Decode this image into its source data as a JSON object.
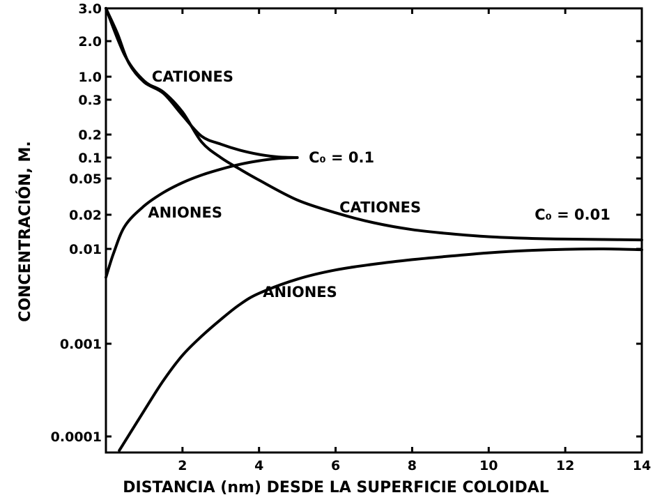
{
  "chart_data": {
    "type": "line",
    "xlabel": "DISTANCIA (nm) DESDE LA SUPERFICIE COLOIDAL",
    "ylabel": "CONCENTRACIÓN, M.",
    "xlim": [
      0,
      14
    ],
    "x_ticks": [
      2,
      4,
      6,
      8,
      10,
      12,
      14
    ],
    "y_ticks": [
      {
        "value": 3.0,
        "label": "3.0"
      },
      {
        "value": 2.0,
        "label": "2.0"
      },
      {
        "value": 1.0,
        "label": "1.0"
      },
      {
        "value": 0.3,
        "label": "0.3"
      },
      {
        "value": 0.2,
        "label": "0.2"
      },
      {
        "value": 0.1,
        "label": "0.1"
      },
      {
        "value": 0.05,
        "label": "0.05"
      },
      {
        "value": 0.02,
        "label": "0.02"
      },
      {
        "value": 0.01,
        "label": "0.01"
      },
      {
        "value": 0.001,
        "label": "0.001"
      },
      {
        "value": 0.0001,
        "label": "0.0001"
      }
    ],
    "grid": false,
    "series": [
      {
        "name": "CATIONES",
        "x": [
          0.0,
          0.3,
          0.6,
          1.0,
          1.5,
          2.0,
          2.5,
          3.0,
          3.5,
          4.0,
          4.5,
          5.0
        ],
        "y": [
          3.0,
          2.2,
          1.3,
          0.75,
          0.42,
          0.25,
          0.19,
          0.15,
          0.125,
          0.11,
          0.102,
          0.1
        ]
      },
      {
        "name": "ANIONES",
        "x": [
          0.0,
          0.2,
          0.5,
          1.0,
          1.5,
          2.0,
          2.5,
          3.0,
          3.5,
          4.0,
          4.5,
          5.0
        ],
        "y": [
          0.005,
          0.009,
          0.016,
          0.025,
          0.035,
          0.045,
          0.056,
          0.068,
          0.08,
          0.09,
          0.097,
          0.1
        ]
      },
      {
        "name": "CATIONES",
        "x": [
          0.0,
          0.5,
          1.0,
          1.5,
          2.0,
          2.5,
          3.0,
          3.5,
          4.0,
          5.0,
          6.0,
          7.0,
          8.0,
          9.0,
          10.0,
          11.0,
          12.0,
          13.0,
          14.0
        ],
        "y": [
          3.0,
          1.5,
          0.8,
          0.45,
          0.26,
          0.16,
          0.1,
          0.068,
          0.048,
          0.029,
          0.021,
          0.017,
          0.0148,
          0.0136,
          0.0128,
          0.0124,
          0.0122,
          0.0121,
          0.012
        ]
      },
      {
        "name": "ANIONES",
        "x": [
          0.35,
          1.0,
          1.5,
          2.0,
          2.5,
          3.0,
          3.5,
          4.0,
          5.0,
          6.0,
          7.0,
          8.0,
          9.0,
          10.0,
          11.0,
          12.0,
          13.0,
          14.0
        ],
        "y": [
          7e-05,
          0.00019,
          0.0004,
          0.00075,
          0.0012,
          0.0018,
          0.0026,
          0.0034,
          0.0048,
          0.006,
          0.0069,
          0.0077,
          0.0084,
          0.0091,
          0.0096,
          0.0099,
          0.01,
          0.0098
        ]
      }
    ],
    "annotations": [
      {
        "text": "CATIONES",
        "x": 1.2,
        "y": 1.0
      },
      {
        "text": "C₀ = 0.1",
        "x": 5.3,
        "y": 0.1
      },
      {
        "text": "ANIONES",
        "x": 1.1,
        "y": 0.021
      },
      {
        "text": "CATIONES",
        "x": 6.1,
        "y": 0.024
      },
      {
        "text": "C₀ = 0.01",
        "x": 11.2,
        "y": 0.02
      },
      {
        "text": "ANIONES",
        "x": 4.1,
        "y": 0.0035
      }
    ]
  }
}
